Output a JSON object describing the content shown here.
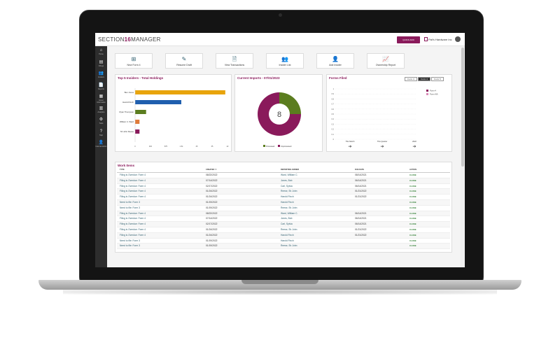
{
  "app": {
    "logo_left": "SECTION",
    "logo_mid": "16",
    "logo_right": "MANAGER",
    "quick_button": "QUICK ADD",
    "company": "Pat's Hardware Inc"
  },
  "sidebar": [
    {
      "icon": "home-icon",
      "glyph": "⌂",
      "label": "Home"
    },
    {
      "icon": "filings-icon",
      "glyph": "▤",
      "label": "Filings"
    },
    {
      "icon": "insiders-icon",
      "glyph": "👥",
      "label": "Insiders"
    },
    {
      "icon": "reports-icon",
      "glyph": "📄",
      "label": "Reports"
    },
    {
      "icon": "issuer-info-icon",
      "glyph": "▦",
      "label": "Issuer Information"
    },
    {
      "icon": "analytics-icon",
      "glyph": "▥",
      "label": "Analytics"
    },
    {
      "icon": "settings-icon",
      "glyph": "⚙",
      "label": "Tools"
    },
    {
      "icon": "help-icon",
      "glyph": "?",
      "label": "Help"
    },
    {
      "icon": "admin-icon",
      "glyph": "👤",
      "label": "Internal Admin"
    }
  ],
  "quick_actions": [
    {
      "icon": "plus-icon",
      "glyph": "⊞",
      "label": "New Form 4"
    },
    {
      "icon": "edit-icon",
      "glyph": "✎",
      "label": "Resume Draft"
    },
    {
      "icon": "document-icon",
      "glyph": "🗎",
      "label": "View Transactions"
    },
    {
      "icon": "users-icon",
      "glyph": "👥",
      "label": "Insider List"
    },
    {
      "icon": "add-user-icon",
      "glyph": "👤",
      "label": "Add Insider"
    },
    {
      "icon": "chart-icon",
      "glyph": "📈",
      "label": "Ownership Report"
    }
  ],
  "top_insiders": {
    "title": "Top 5 Insiders - Total Holdings",
    "colors": [
      "#e8a40c",
      "#1f5fae",
      "#5b7d1f",
      "#e07b39",
      "#8a1a5b"
    ]
  },
  "imports": {
    "title": "Current Imports - 07/01/2023",
    "center": "8",
    "colors": [
      "#5b7d1f",
      "#8a1a5b"
    ]
  },
  "forms_filed": {
    "title": "Forms Filed",
    "tabs": [
      "Form 3",
      "Form 4",
      "Form 5"
    ],
    "active_tab": 1,
    "legend": [
      {
        "label": "Form 4",
        "color": "#8a1a5b"
      },
      {
        "label": "Form 4/A",
        "color": "#d98bb8"
      }
    ],
    "periods": [
      "This Month",
      "This Quarter",
      "2022"
    ]
  },
  "work_items": {
    "title": "Work Items",
    "headers": [
      "TYPE",
      "CREATED ▼",
      "REPORTING OWNER",
      "DUE DATE",
      "ACTION"
    ],
    "rows": [
      [
        "Filing is Overdue: Form 4",
        "08/22/2022",
        "Ward, William C.",
        "08/14/2021",
        "CLOSE"
      ],
      [
        "Filing is Overdue: Form 4",
        "07/14/2022",
        "Jones, Bob",
        "06/14/2021",
        "CLOSE"
      ],
      [
        "Filing is Overdue: Form 4",
        "02/17/2022",
        "Carl, Sylvia",
        "06/14/2021",
        "CLOSE"
      ],
      [
        "Filing is Overdue: Form 4",
        "01/24/2022",
        "Reese, Sh John",
        "01/21/2022",
        "CLOSE"
      ],
      [
        "Filing is Overdue: Form 4",
        "01/24/2022",
        "Harold Finch",
        "01/21/2022",
        "CLOSE"
      ],
      [
        "Need to file: Form 3",
        "01/19/2022",
        "Harold Finch",
        "",
        "CLOSE"
      ],
      [
        "Need to file: Form 3",
        "01/19/2022",
        "Reese, Sh John",
        "",
        "CLOSE"
      ],
      [
        "Filing is Overdue: Form 4",
        "08/22/2022",
        "Ward, William C.",
        "06/14/2021",
        "CLOSE"
      ],
      [
        "Filing is Overdue: Form 4",
        "07/14/2022",
        "Jones, Bob",
        "06/14/2021",
        "CLOSE"
      ],
      [
        "Filing is Overdue: Form 4",
        "02/17/2022",
        "Carl, Sylvia",
        "06/14/2021",
        "CLOSE"
      ],
      [
        "Filing is Overdue: Form 4",
        "01/24/2022",
        "Reese, Sh John",
        "01/21/2022",
        "CLOSE"
      ],
      [
        "Filing is Overdue: Form 4",
        "01/24/2022",
        "Harold Finch",
        "01/21/2022",
        "CLOSE"
      ],
      [
        "Need to file: Form 3",
        "01/19/2022",
        "Harold Finch",
        "",
        "CLOSE"
      ],
      [
        "Need to file: Form 3",
        "01/19/2022",
        "Reese, Sh John",
        "",
        "CLOSE"
      ]
    ]
  },
  "chart_data": [
    {
      "type": "bar",
      "orientation": "horizontal",
      "title": "Top 5 Insiders - Total Holdings",
      "categories": [
        "Ben Jones",
        "Harold Finch",
        "Ryan Thompson",
        "William C. Ward",
        "Sh John Reese"
      ],
      "values": [
        41,
        21,
        5,
        2,
        2
      ],
      "xlim": [
        0,
        42
      ],
      "xticks": [
        "0",
        "400",
        "875",
        "1.5k",
        "25",
        "35",
        "42"
      ]
    },
    {
      "type": "pie",
      "title": "Current Imports - 07/01/2023",
      "categories": [
        "Processed",
        "Unprocessed"
      ],
      "values": [
        2,
        6
      ]
    },
    {
      "type": "bar",
      "title": "Forms Filed",
      "categories": [
        "This Month",
        "This Quarter",
        "2022"
      ],
      "series": [
        {
          "name": "Form 4",
          "values": [
            0,
            0,
            0
          ]
        },
        {
          "name": "Form 4/A",
          "values": [
            0,
            0,
            0
          ]
        }
      ],
      "ylim": [
        0,
        1
      ],
      "yticks": [
        "1",
        "0.9",
        "0.8",
        "0.7",
        "0.6",
        "0.5",
        "0.4",
        "0.3",
        "0.2",
        "0.1",
        "0"
      ]
    }
  ]
}
